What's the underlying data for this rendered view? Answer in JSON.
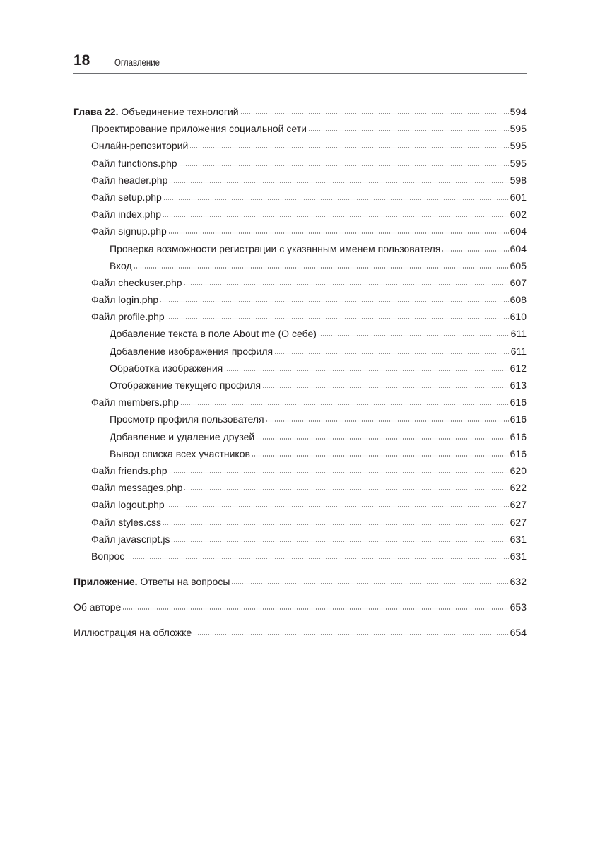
{
  "header": {
    "page_number": "18",
    "title": "Оглавление"
  },
  "toc": [
    {
      "level": 0,
      "prefix": "Глава 22.",
      "title": "Объединение технологий",
      "page": "594"
    },
    {
      "level": 1,
      "title": "Проектирование приложения социальной сети",
      "page": "595"
    },
    {
      "level": 1,
      "title": "Онлайн-репозиторий",
      "page": "595"
    },
    {
      "level": 1,
      "title": "Файл functions.php",
      "page": "595"
    },
    {
      "level": 1,
      "title": "Файл header.php",
      "page": "598"
    },
    {
      "level": 1,
      "title": "Файл setup.php",
      "page": "601"
    },
    {
      "level": 1,
      "title": "Файл index.php",
      "page": "602"
    },
    {
      "level": 1,
      "title": "Файл signup.php",
      "page": "604"
    },
    {
      "level": 2,
      "title": "Проверка возможности регистрации с указанным именем пользователя",
      "page": "604"
    },
    {
      "level": 2,
      "title": "Вход",
      "page": "605"
    },
    {
      "level": 1,
      "title": "Файл checkuser.php",
      "page": "607"
    },
    {
      "level": 1,
      "title": "Файл login.php",
      "page": "608"
    },
    {
      "level": 1,
      "title": "Файл profile.php",
      "page": "610"
    },
    {
      "level": 2,
      "title": "Добавление текста в поле About me (О себе)",
      "page": "611"
    },
    {
      "level": 2,
      "title": "Добавление изображения профиля",
      "page": "611"
    },
    {
      "level": 2,
      "title": "Обработка изображения",
      "page": "612"
    },
    {
      "level": 2,
      "title": "Отображение текущего профиля",
      "page": "613"
    },
    {
      "level": 1,
      "title": "Файл members.php",
      "page": "616"
    },
    {
      "level": 2,
      "title": "Просмотр профиля пользователя",
      "page": "616"
    },
    {
      "level": 2,
      "title": "Добавление и удаление друзей",
      "page": "616"
    },
    {
      "level": 2,
      "title": "Вывод списка всех участников",
      "page": "616"
    },
    {
      "level": 1,
      "title": "Файл friends.php",
      "page": "620"
    },
    {
      "level": 1,
      "title": "Файл messages.php",
      "page": "622"
    },
    {
      "level": 1,
      "title": "Файл logout.php",
      "page": "627"
    },
    {
      "level": 1,
      "title": "Файл styles.css",
      "page": "627"
    },
    {
      "level": 1,
      "title": "Файл javascript.js",
      "page": "631"
    },
    {
      "level": 1,
      "title": "Вопрос",
      "page": "631"
    },
    {
      "level": 0,
      "top": true,
      "prefix": "Приложение.",
      "title": "Ответы на вопросы",
      "page": "632"
    },
    {
      "level": 0,
      "top": true,
      "title": "Об авторе",
      "page": "653"
    },
    {
      "level": 0,
      "top": true,
      "title": "Иллюстрация на обложке",
      "page": "654"
    }
  ]
}
